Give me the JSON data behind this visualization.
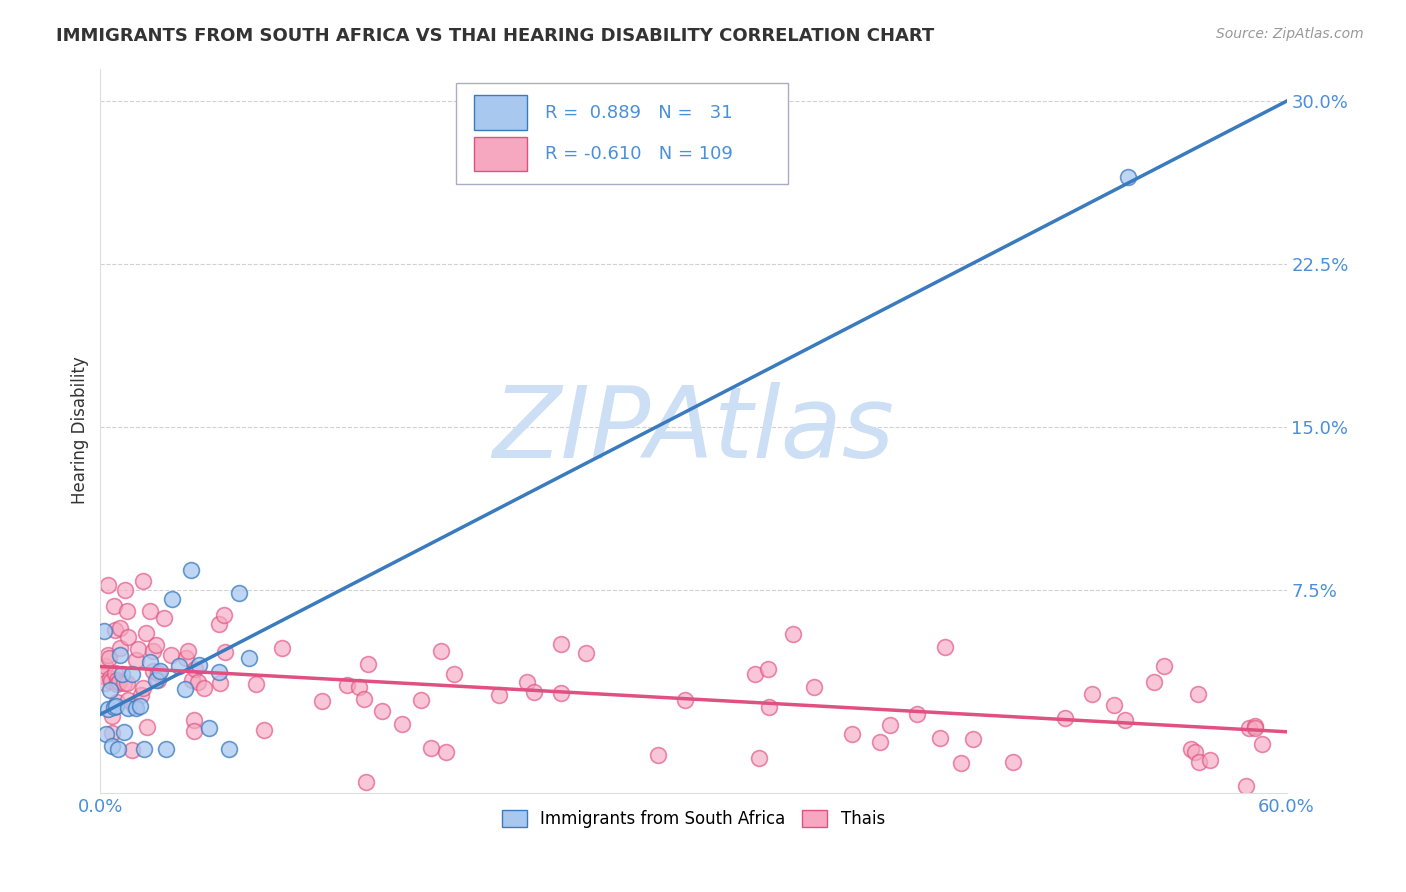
{
  "title": "IMMIGRANTS FROM SOUTH AFRICA VS THAI HEARING DISABILITY CORRELATION CHART",
  "source": "Source: ZipAtlas.com",
  "xlim": [
    0.0,
    0.6
  ],
  "ylim": [
    -0.018,
    0.315
  ],
  "ylabel": "Hearing Disability",
  "blue_color": "#a8c8f0",
  "blue_line_color": "#3a7abf",
  "pink_color": "#f5a8c0",
  "pink_line_color": "#e05080",
  "watermark": "ZIPAtlas",
  "watermark_color": "#cddff5",
  "background_color": "#ffffff",
  "grid_color": "#cccccc",
  "title_color": "#333333",
  "tick_label_color": "#4a90d9",
  "blue_R": 0.889,
  "blue_N": 31,
  "pink_R": -0.61,
  "pink_N": 109,
  "blue_line_x0": 0.0,
  "blue_line_y0": 0.018,
  "blue_line_x1": 0.6,
  "blue_line_y1": 0.3,
  "pink_line_x0": 0.0,
  "pink_line_y0": 0.04,
  "pink_line_x1": 0.6,
  "pink_line_y1": 0.01
}
